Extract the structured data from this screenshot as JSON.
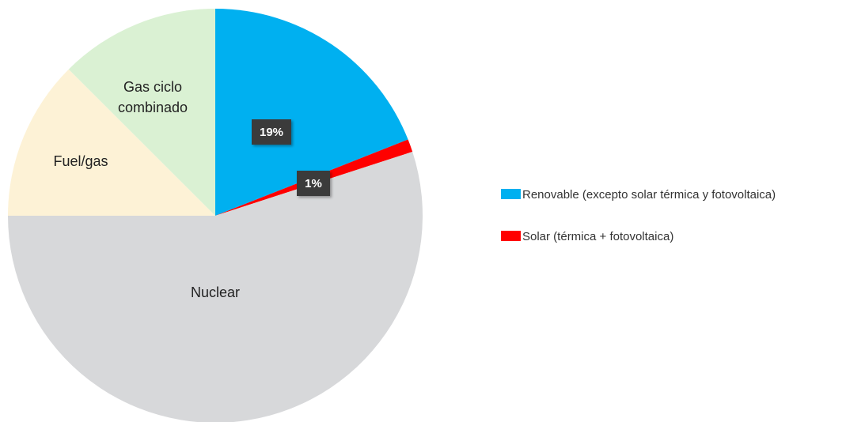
{
  "chart_data": {
    "type": "pie",
    "slices": [
      {
        "label": "Renovable (excepto solar térmica y fotovoltaica)",
        "value": 19,
        "data_label": "19%",
        "color": "#00b0f0",
        "slice_text": ""
      },
      {
        "label": "Solar (térmica + fotovoltaica)",
        "value": 1,
        "data_label": "1%",
        "color": "#ff0000",
        "slice_text": ""
      },
      {
        "label": "Nuclear",
        "value": 55,
        "data_label": "",
        "color": "#d7d8da",
        "slice_text": "Nuclear"
      },
      {
        "label": "Fuel/gas",
        "value": 12.5,
        "data_label": "",
        "color": "#fdf2d6",
        "slice_text": "Fuel/gas"
      },
      {
        "label": "Gas ciclo combinado",
        "value": 12.5,
        "data_label": "",
        "color": "#daf1d3",
        "slice_text": "Gas ciclo combinado"
      }
    ],
    "legend": [
      {
        "label": "Renovable (excepto solar térmica y fotovoltaica)",
        "color": "#00b0f0"
      },
      {
        "label": "Solar (térmica + fotovoltaica)",
        "color": "#ff0000"
      }
    ],
    "legend_position": "right",
    "start_angle": "12 o'clock",
    "direction": "clockwise",
    "data_label_style": "dark badge"
  }
}
